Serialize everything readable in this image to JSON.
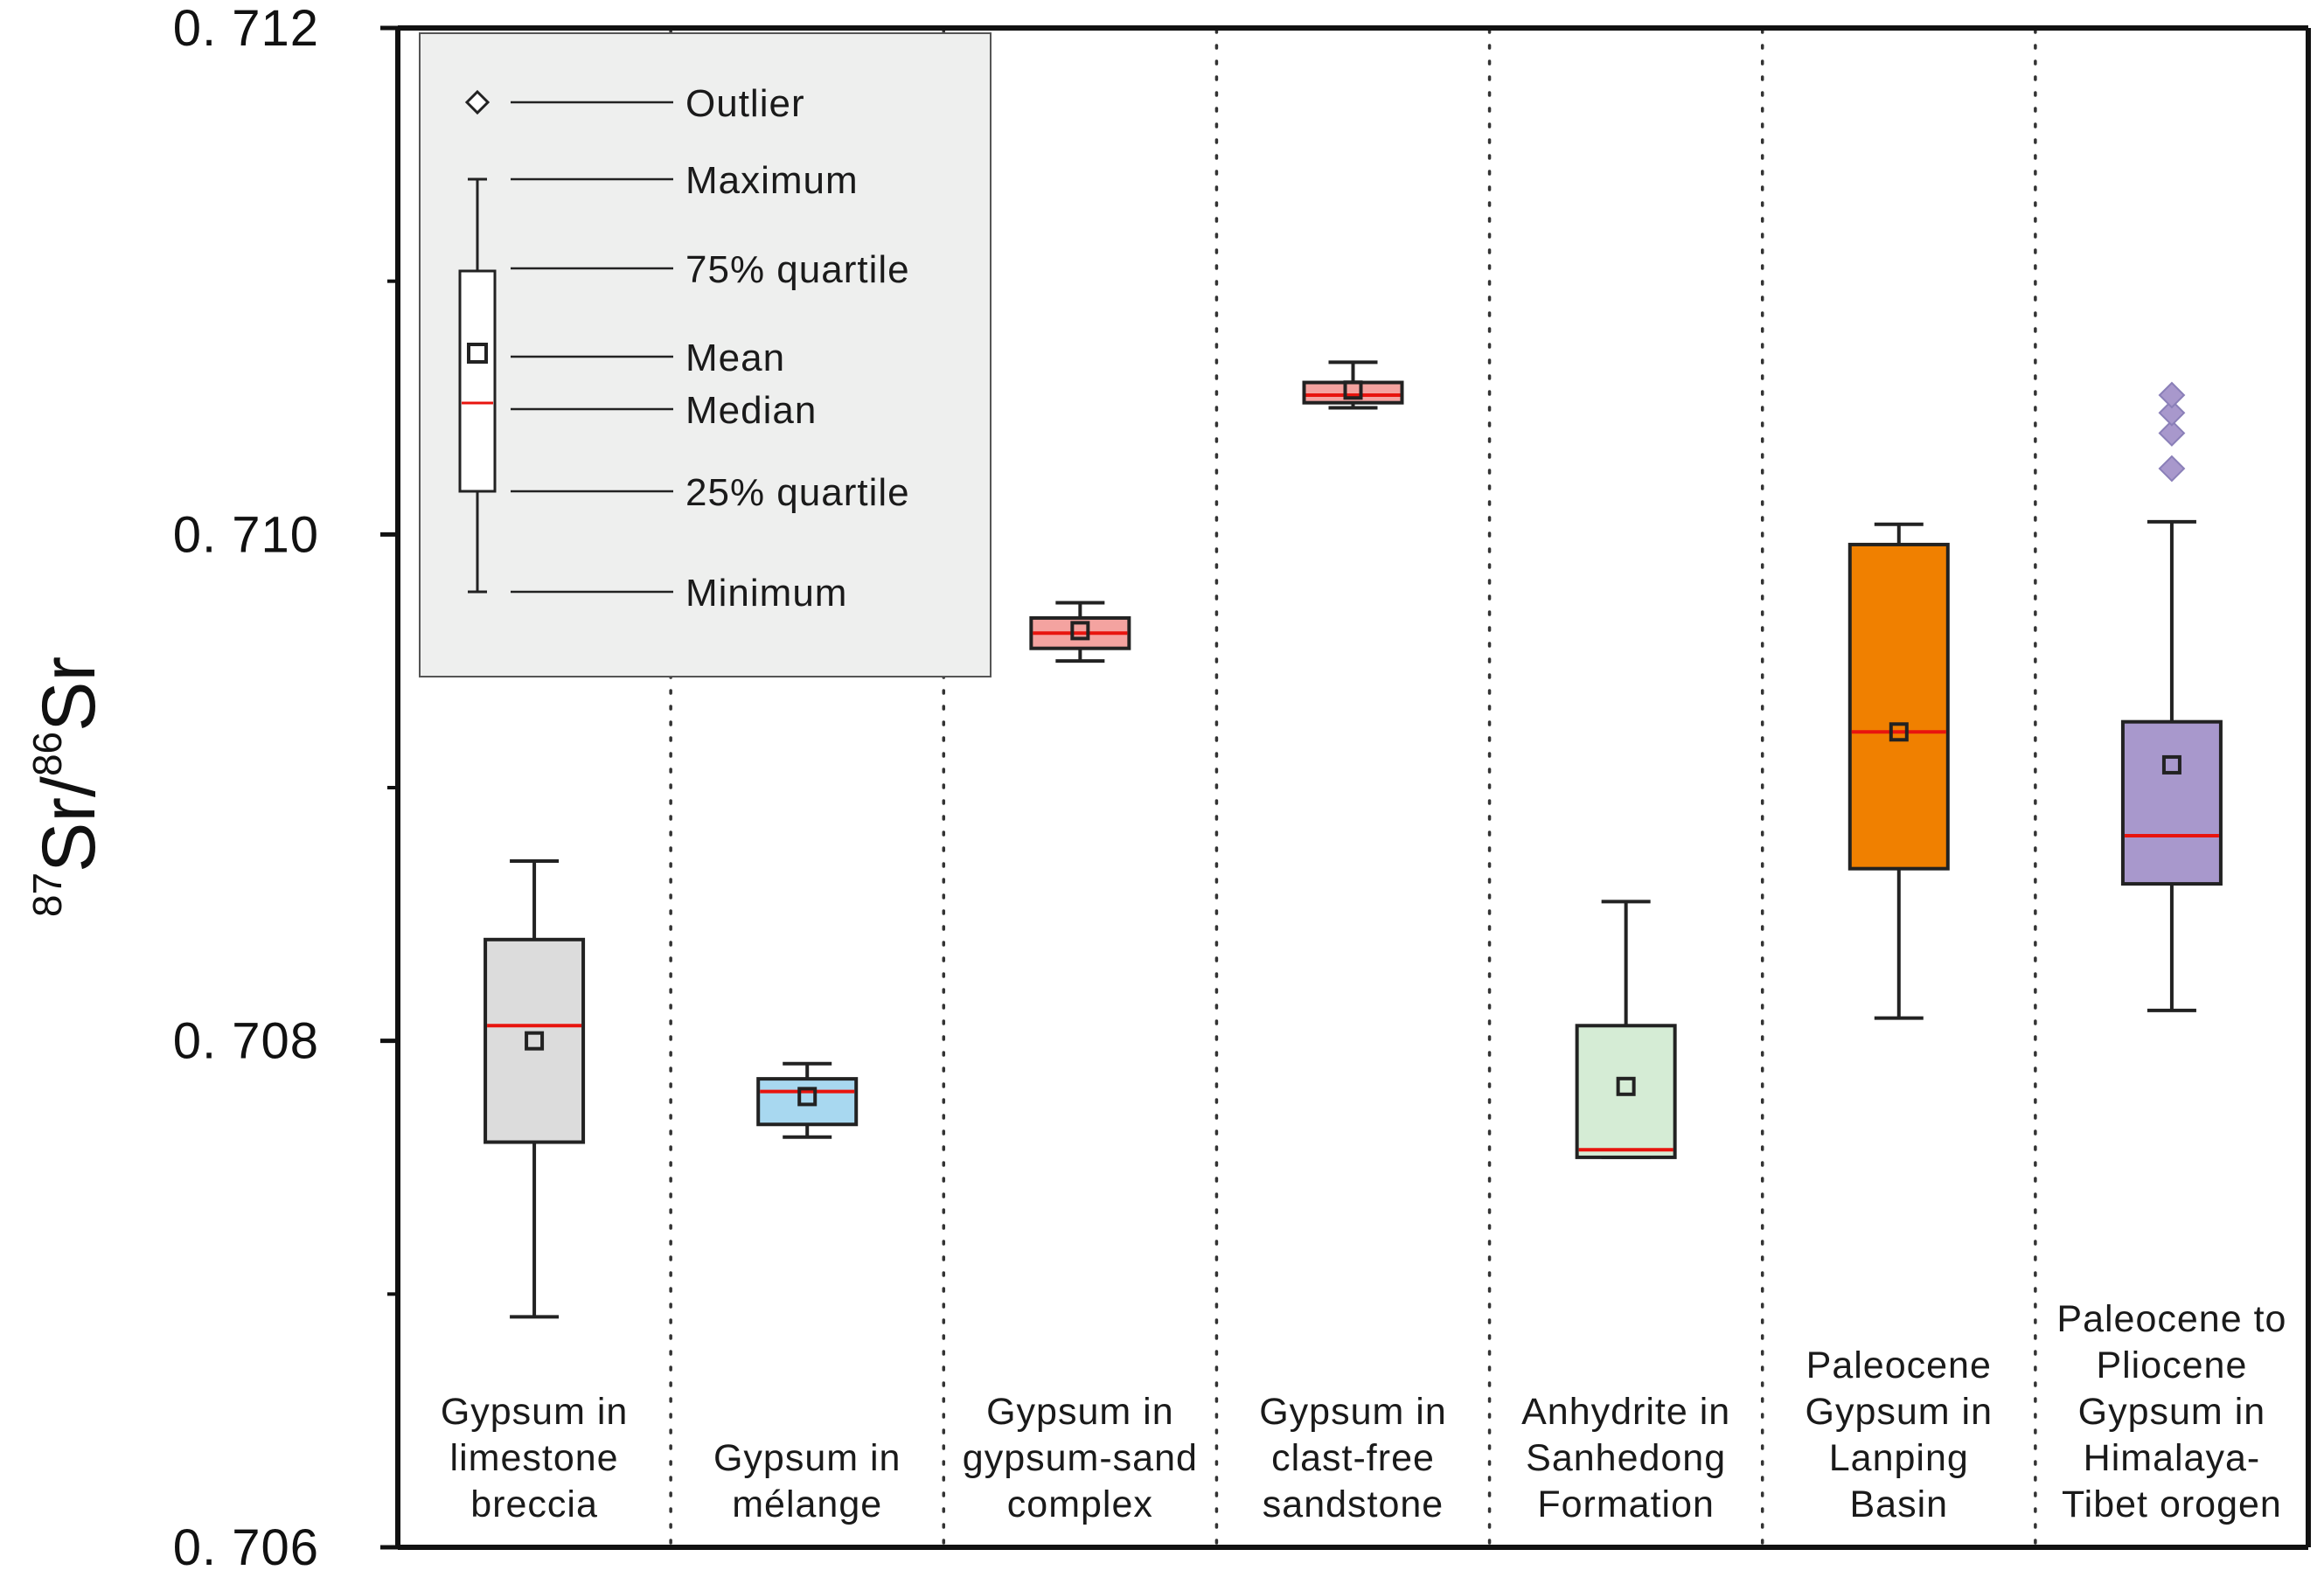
{
  "chart_data": {
    "type": "box",
    "title": "",
    "xlabel": "",
    "ylabel": {
      "sup1": "87",
      "base1": "Sr/",
      "sup2": "86",
      "base2": "Sr"
    },
    "ylim": [
      0.706,
      0.712
    ],
    "yticks": [
      0.706,
      0.708,
      0.71,
      0.712
    ],
    "ytick_labels": [
      "0. 706",
      "0. 708",
      "0. 710",
      "0. 712"
    ],
    "minor_yticks": [
      0.707,
      0.709,
      0.711
    ],
    "categories": [
      {
        "lines": [
          "Gypsum in",
          "limestone",
          "breccia"
        ]
      },
      {
        "lines": [
          "Gypsum in",
          "mélange"
        ]
      },
      {
        "lines": [
          "Gypsum in",
          "gypsum-sand",
          "complex"
        ]
      },
      {
        "lines": [
          "Gypsum in",
          "clast-free",
          "sandstone"
        ]
      },
      {
        "lines": [
          "Anhydrite in",
          "Sanhedong",
          "Formation"
        ]
      },
      {
        "lines": [
          "Paleocene",
          "Gypsum in",
          "Lanping",
          "Basin"
        ]
      },
      {
        "lines": [
          "Paleocene to",
          "Pliocene",
          "Gypsum in",
          "Himalaya-",
          "Tibet orogen"
        ]
      }
    ],
    "series": [
      {
        "name": "Gypsum in limestone breccia",
        "min": 0.70691,
        "q1": 0.7076,
        "median": 0.70806,
        "q3": 0.7084,
        "max": 0.70871,
        "mean": 0.708,
        "outliers": [],
        "color": "#dcdcdc"
      },
      {
        "name": "Gypsum in mélange",
        "min": 0.70762,
        "q1": 0.70767,
        "median": 0.7078,
        "q3": 0.70785,
        "max": 0.70791,
        "mean": 0.70778,
        "outliers": [],
        "color": "#a8d8f0"
      },
      {
        "name": "Gypsum in gypsum-sand complex",
        "min": 0.7095,
        "q1": 0.70955,
        "median": 0.70961,
        "q3": 0.70967,
        "max": 0.70973,
        "mean": 0.70962,
        "outliers": [],
        "color": "#f4a3a0"
      },
      {
        "name": "Gypsum in clast-free sandstone",
        "min": 0.7105,
        "q1": 0.71052,
        "median": 0.71055,
        "q3": 0.7106,
        "max": 0.71068,
        "mean": 0.71057,
        "outliers": [],
        "color": "#f4a3a0"
      },
      {
        "name": "Anhydrite in Sanhedong Formation",
        "min": 0.70754,
        "q1": 0.70754,
        "median": 0.70757,
        "q3": 0.70806,
        "max": 0.70855,
        "mean": 0.70782,
        "outliers": [],
        "color": "#d5ecd5"
      },
      {
        "name": "Paleocene Gypsum in Lanping Basin",
        "min": 0.70809,
        "q1": 0.70868,
        "median": 0.70922,
        "q3": 0.70996,
        "max": 0.71004,
        "mean": 0.70922,
        "outliers": [],
        "color": "#f08000"
      },
      {
        "name": "Paleocene to Pliocene Gypsum in Himalaya-Tibet orogen",
        "min": 0.70812,
        "q1": 0.70862,
        "median": 0.70881,
        "q3": 0.70926,
        "max": 0.71005,
        "mean": 0.70909,
        "outliers": [
          0.71026,
          0.7104,
          0.71048,
          0.71055
        ],
        "color": "#a898cc"
      }
    ],
    "median_color": "#e8140e",
    "legend": {
      "position": "top-left",
      "background": "#eeefee",
      "items": [
        "Outlier",
        "Maximum",
        "75% quartile",
        "Mean",
        "Median",
        "25% quartile",
        "Minimum"
      ]
    }
  }
}
